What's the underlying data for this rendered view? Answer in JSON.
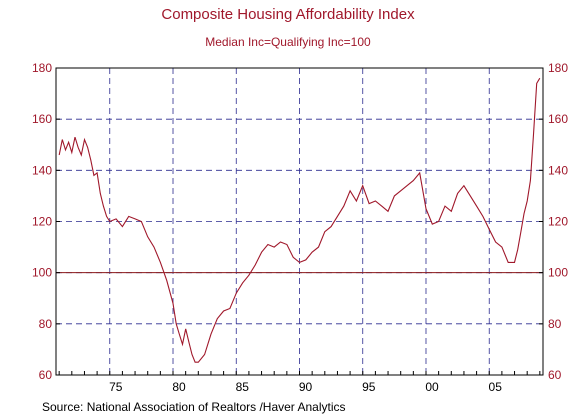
{
  "chart_data": {
    "type": "line",
    "title": "Composite Housing Affordability Index",
    "subtitle": "Median Inc=Qualifying Inc=100",
    "source": "Source:  National Association of Realtors /Haver Analytics",
    "ylim": [
      60,
      180
    ],
    "y_ticks": [
      60,
      80,
      100,
      120,
      140,
      160,
      180
    ],
    "xlim": [
      1970.75,
      2009.25
    ],
    "x_ticks": [
      {
        "value": 1975,
        "label": "75"
      },
      {
        "value": 1980,
        "label": "80"
      },
      {
        "value": 1985,
        "label": "85"
      },
      {
        "value": 1990,
        "label": "90"
      },
      {
        "value": 1995,
        "label": "95"
      },
      {
        "value": 2000,
        "label": "00"
      },
      {
        "value": 2005,
        "label": "05"
      }
    ],
    "reference_line": 100,
    "grid": true,
    "colors": {
      "series": "#a0182b",
      "text": "#a0182b",
      "grid": "#2b2b8f",
      "reference": "#8b1a1a"
    },
    "series": [
      {
        "x": [
          1971.0,
          1971.25,
          1971.5,
          1971.75,
          1972.0,
          1972.25,
          1972.5,
          1972.75,
          1973.0,
          1973.25,
          1973.5,
          1973.75,
          1974.0,
          1974.25,
          1974.5,
          1974.75,
          1975.0,
          1975.5,
          1976.0,
          1976.5,
          1977.0,
          1977.5,
          1978.0,
          1978.5,
          1979.0,
          1979.5,
          1980.0,
          1980.25,
          1980.5,
          1980.75,
          1981.0,
          1981.25,
          1981.5,
          1981.75,
          1982.0,
          1982.5,
          1983.0,
          1983.5,
          1984.0,
          1984.5,
          1985.0,
          1985.5,
          1986.0,
          1986.5,
          1987.0,
          1987.5,
          1988.0,
          1988.5,
          1989.0,
          1989.5,
          1990.0,
          1990.5,
          1991.0,
          1991.5,
          1992.0,
          1992.5,
          1993.0,
          1993.5,
          1994.0,
          1994.5,
          1995.0,
          1995.5,
          1996.0,
          1996.5,
          1997.0,
          1997.5,
          1998.0,
          1998.5,
          1999.0,
          1999.5,
          2000.0,
          2000.5,
          2001.0,
          2001.5,
          2002.0,
          2002.5,
          2003.0,
          2003.5,
          2004.0,
          2004.5,
          2005.0,
          2005.5,
          2006.0,
          2006.5,
          2007.0,
          2007.25,
          2007.5,
          2007.75,
          2008.0,
          2008.25,
          2008.5,
          2008.75,
          2009.0
        ],
        "y": [
          146,
          152,
          148,
          151,
          147,
          153,
          149,
          146,
          152,
          149,
          144,
          138,
          139,
          131,
          126,
          122,
          120,
          121,
          118,
          122,
          121,
          120,
          114,
          110,
          104,
          97,
          88,
          80,
          76,
          72,
          78,
          73,
          68,
          65,
          65,
          68,
          76,
          82,
          85,
          86,
          92,
          96,
          99,
          103,
          108,
          111,
          110,
          112,
          111,
          106,
          104,
          105,
          108,
          110,
          116,
          118,
          122,
          126,
          132,
          128,
          134,
          127,
          128,
          126,
          124,
          130,
          132,
          134,
          136,
          139,
          125,
          119,
          120,
          126,
          124,
          131,
          134,
          130,
          126,
          122,
          117,
          112,
          110,
          104,
          104,
          109,
          116,
          123,
          128,
          136,
          154,
          174,
          176
        ]
      }
    ]
  }
}
